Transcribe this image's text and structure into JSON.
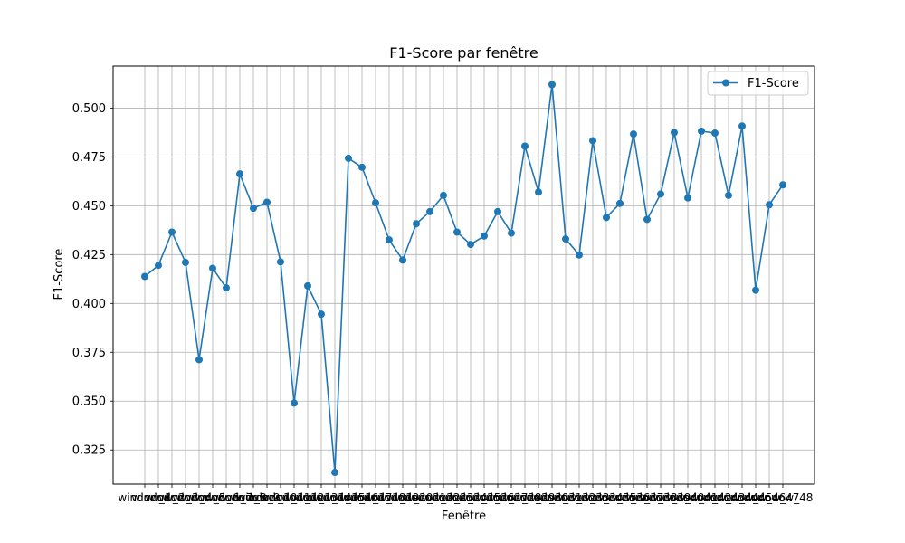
{
  "chart_data": {
    "type": "line",
    "title": "F1-Score par fenêtre",
    "xlabel": "Fenêtre",
    "ylabel": "F1-Score",
    "ylim": [
      0.3075,
      0.5215
    ],
    "yticks": [
      0.325,
      0.35,
      0.375,
      0.4,
      0.425,
      0.45,
      0.475,
      0.5
    ],
    "ytick_labels": [
      "0.325",
      "0.350",
      "0.375",
      "0.400",
      "0.425",
      "0.450",
      "0.475",
      "0.500"
    ],
    "grid": true,
    "legend_position": "top-right",
    "line_color": "#1f77b4",
    "categories": [
      "window_1",
      "window_2",
      "window_3",
      "window_4",
      "window_5",
      "window_6",
      "window_7",
      "window_8",
      "window_9",
      "window_10",
      "window_11",
      "window_12",
      "window_13",
      "window_14",
      "window_15",
      "window_16",
      "window_17",
      "window_18",
      "window_19",
      "window_20",
      "window_21",
      "window_22",
      "window_23",
      "window_24",
      "window_25",
      "window_26",
      "window_27",
      "window_28",
      "window_29",
      "window_30",
      "window_31",
      "window_32",
      "window_33",
      "window_34",
      "window_35",
      "window_36",
      "window_37",
      "window_38",
      "window_39",
      "window_40",
      "window_41",
      "window_42",
      "window_43",
      "window_44",
      "window_45",
      "window_46",
      "window_47",
      "window_48"
    ],
    "series": [
      {
        "name": "F1-Score",
        "values": [
          0.4138,
          0.4195,
          0.4365,
          0.421,
          0.3712,
          0.418,
          0.408,
          0.4663,
          0.4487,
          0.4518,
          0.4213,
          0.349,
          0.409,
          0.3945,
          0.3135,
          0.4743,
          0.4697,
          0.4515,
          0.4325,
          0.4222,
          0.4408,
          0.447,
          0.4553,
          0.4365,
          0.4302,
          0.4345,
          0.447,
          0.436,
          0.4805,
          0.457,
          0.512,
          0.433,
          0.4248,
          0.4833,
          0.444,
          0.4512,
          0.4867,
          0.443,
          0.456,
          0.4875,
          0.454,
          0.4882,
          0.4872,
          0.4553,
          0.4908,
          0.4068,
          0.4505,
          0.4607
        ]
      }
    ]
  }
}
